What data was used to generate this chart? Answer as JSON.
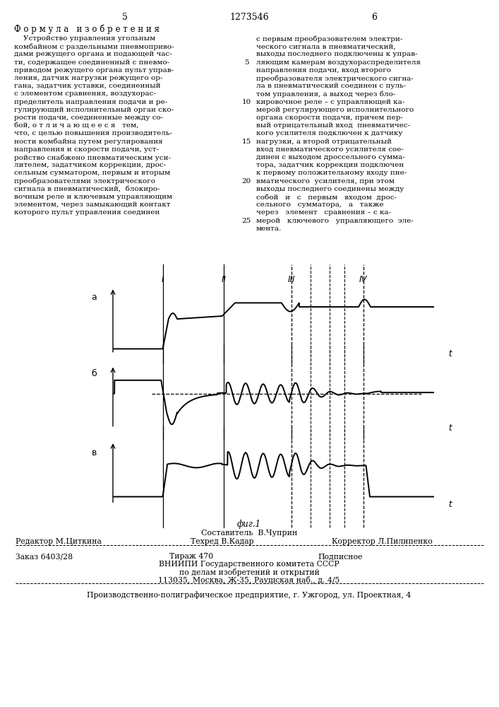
{
  "page_number_left": "5",
  "page_number_right": "6",
  "patent_number": "1273546",
  "title_heading": "Ф о р м у л а   и з о б р е т е н и я",
  "left_col_lines": [
    "    Устройство управления угольным",
    "комбайном с раздельными пневмоприво-",
    "дами режущего органа и подающей час-",
    "ти, содержащее соединенный с пневмо-",
    "приводом режущего органа пульт управ-",
    "ления, датчик нагрузки режущего ор-",
    "гана, задатчик уставки, соединенный",
    "с элементом сравнения, воздухорас-",
    "пределитель направления подачи и ре-",
    "гулирующий исполнительный орган ско-",
    "рости подачи, соединенные между со-",
    "бой, о т л и ч а ю щ е е с я   тем,",
    "что, с целью повышения производитель-",
    "ности комбайна путем регулирования",
    "направления и скорости подачи, уст-",
    "ройство снабжено пневматическим уси-",
    "лителем, задатчиком коррекции, дрос-",
    "сельным сумматором, первым и вторым",
    "преобразователями электрического",
    "сигнала в пневматический,  блокиро-",
    "вочным реле и ключевым управляющим",
    "элементом, через замыкающий контакт",
    "которого пульт управления соединен"
  ],
  "right_col_lines": [
    "с первым преобразователем электри-",
    "ческого сигнала в пневматический,",
    "выходы последнего подключены к управ-",
    "ляющим камерам воздухораспределителя",
    "направления подачи, вход второго",
    "преобразователя электрического сигна-",
    "ла в пневматический соединен с пуль-",
    "том управления, а выход через бло-",
    "кировочное реле – с управляющей ка-",
    "мерой регулирующего исполнительного",
    "органа скорости подачи, причем пер-",
    "вый отрицательный вход  пневматичес-",
    "кого усилителя подключен к датчику",
    "нагрузки, а второй отрицательный",
    "вход пневматического усилителя сое-",
    "динен с выходом дроссельного сумма-",
    "тора, задатчик коррекции подключен",
    "к первому положительному входу пне-",
    "вматического  усилителя, при этом",
    "выходы последнего соединены между",
    "собой   и   с   первым   входом  дрос-",
    "сельного   сумматора,   а   также",
    "через   элемент   сравнения – с ка-",
    "мерой   ключевого   управляющего  эле-",
    "мента."
  ],
  "line_numbers_rows": [
    3,
    8,
    13,
    18,
    23
  ],
  "figure_label": "фиг.1",
  "composer": "Составитель  В.Чуприн",
  "editor": "Редактор М.Циткина",
  "techred": "Техред В.Кадар",
  "corrector": "Корректор Л.Пилипенко",
  "order": "Заказ 6403/28",
  "tirazh": "Тираж 470",
  "podpisnoe": "Подписное",
  "institute1": "ВНИИПИ Государственного комитета СССР",
  "institute2": "по делам изобретений и открытий",
  "institute3": "113035, Москва, Ж-35, Раушская наб., д. 4/5",
  "production": "Производственно-полиграфическое предприятие, г. Ужгород, ул. Проектная, 4"
}
